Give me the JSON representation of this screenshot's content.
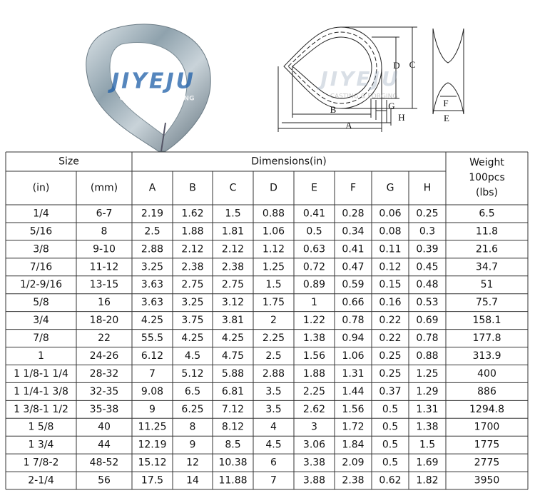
{
  "watermark": {
    "brand": "JIYEJU",
    "tagline": "CASTING & FORGING"
  },
  "diagram": {
    "labels": [
      "A",
      "B",
      "C",
      "D",
      "E",
      "F",
      "G",
      "H"
    ]
  },
  "table": {
    "group_headers": [
      "Size",
      "Dimensions(in)"
    ],
    "weight_header": [
      "Weight",
      "100pcs",
      "(lbs)"
    ],
    "column_headers": [
      "(in)",
      "(mm)",
      "A",
      "B",
      "C",
      "D",
      "E",
      "F",
      "G",
      "H"
    ],
    "rows": [
      [
        "1/4",
        "6-7",
        "2.19",
        "1.62",
        "1.5",
        "0.88",
        "0.41",
        "0.28",
        "0.06",
        "0.25",
        "6.5"
      ],
      [
        "5/16",
        "8",
        "2.5",
        "1.88",
        "1.81",
        "1.06",
        "0.5",
        "0.34",
        "0.08",
        "0.3",
        "11.8"
      ],
      [
        "3/8",
        "9-10",
        "2.88",
        "2.12",
        "2.12",
        "1.12",
        "0.63",
        "0.41",
        "0.11",
        "0.39",
        "21.6"
      ],
      [
        "7/16",
        "11-12",
        "3.25",
        "2.38",
        "2.38",
        "1.25",
        "0.72",
        "0.47",
        "0.12",
        "0.45",
        "34.7"
      ],
      [
        "1/2-9/16",
        "13-15",
        "3.63",
        "2.75",
        "2.75",
        "1.5",
        "0.89",
        "0.59",
        "0.15",
        "0.48",
        "51"
      ],
      [
        "5/8",
        "16",
        "3.63",
        "3.25",
        "3.12",
        "1.75",
        "1",
        "0.66",
        "0.16",
        "0.53",
        "75.7"
      ],
      [
        "3/4",
        "18-20",
        "4.25",
        "3.75",
        "3.81",
        "2",
        "1.22",
        "0.78",
        "0.22",
        "0.69",
        "158.1"
      ],
      [
        "7/8",
        "22",
        "55.5",
        "4.25",
        "4.25",
        "2.25",
        "1.38",
        "0.94",
        "0.22",
        "0.78",
        "177.8"
      ],
      [
        "1",
        "24-26",
        "6.12",
        "4.5",
        "4.75",
        "2.5",
        "1.56",
        "1.06",
        "0.25",
        "0.88",
        "313.9"
      ],
      [
        "1 1/8-1 1/4",
        "28-32",
        "7",
        "5.12",
        "5.88",
        "2.88",
        "1.88",
        "1.31",
        "0.25",
        "1.25",
        "400"
      ],
      [
        "1 1/4-1 3/8",
        "32-35",
        "9.08",
        "6.5",
        "6.81",
        "3.5",
        "2.25",
        "1.44",
        "0.37",
        "1.29",
        "886"
      ],
      [
        "1 3/8-1 1/2",
        "35-38",
        "9",
        "6.25",
        "7.12",
        "3.5",
        "2.62",
        "1.56",
        "0.5",
        "1.31",
        "1294.8"
      ],
      [
        "1 5/8",
        "40",
        "11.25",
        "8",
        "8.12",
        "4",
        "3",
        "1.72",
        "0.5",
        "1.38",
        "1700"
      ],
      [
        "1 3/4",
        "44",
        "12.19",
        "9",
        "8.5",
        "4.5",
        "3.06",
        "1.84",
        "0.5",
        "1.5",
        "1775"
      ],
      [
        "1 7/8-2",
        "48-52",
        "15.12",
        "12",
        "10.38",
        "6",
        "3.38",
        "2.09",
        "0.5",
        "1.69",
        "2775"
      ],
      [
        "2-1/4",
        "56",
        "17.5",
        "14",
        "11.88",
        "7",
        "3.88",
        "2.38",
        "0.62",
        "1.82",
        "3950"
      ]
    ]
  }
}
